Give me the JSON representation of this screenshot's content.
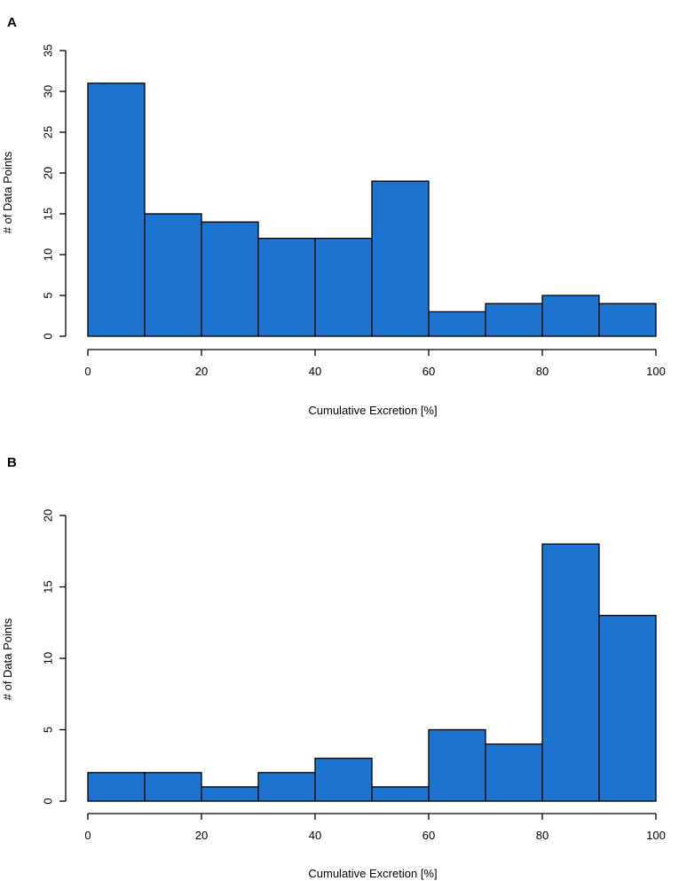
{
  "colors": {
    "bar_fill": "#1c74d0",
    "bar_stroke": "#000000",
    "axis": "#000000",
    "background": "#ffffff"
  },
  "chart_data": [
    {
      "panel": "A",
      "type": "bar",
      "subtype": "histogram",
      "bin_edges": [
        0,
        10,
        20,
        30,
        40,
        50,
        60,
        70,
        80,
        90,
        100
      ],
      "values": [
        31,
        15,
        14,
        12,
        12,
        19,
        3,
        4,
        5,
        4
      ],
      "xlabel": "Cumulative Excretion [%]",
      "ylabel": "# of Data Points",
      "xlim": [
        0,
        100
      ],
      "ylim": [
        0,
        35
      ],
      "xticks": [
        "0",
        "20",
        "40",
        "60",
        "80",
        "100"
      ],
      "yticks": [
        "0",
        "5",
        "10",
        "15",
        "20",
        "25",
        "30",
        "35"
      ],
      "grid": false
    },
    {
      "panel": "B",
      "type": "bar",
      "subtype": "histogram",
      "bin_edges": [
        0,
        10,
        20,
        30,
        40,
        50,
        60,
        70,
        80,
        90,
        100
      ],
      "values": [
        2,
        2,
        1,
        2,
        3,
        1,
        5,
        4,
        18,
        13
      ],
      "xlabel": "Cumulative Excretion [%]",
      "ylabel": "# of Data Points",
      "xlim": [
        0,
        100
      ],
      "ylim": [
        0,
        20
      ],
      "xticks": [
        "0",
        "20",
        "40",
        "60",
        "80",
        "100"
      ],
      "yticks": [
        "0",
        "5",
        "10",
        "15",
        "20"
      ],
      "grid": false
    }
  ]
}
